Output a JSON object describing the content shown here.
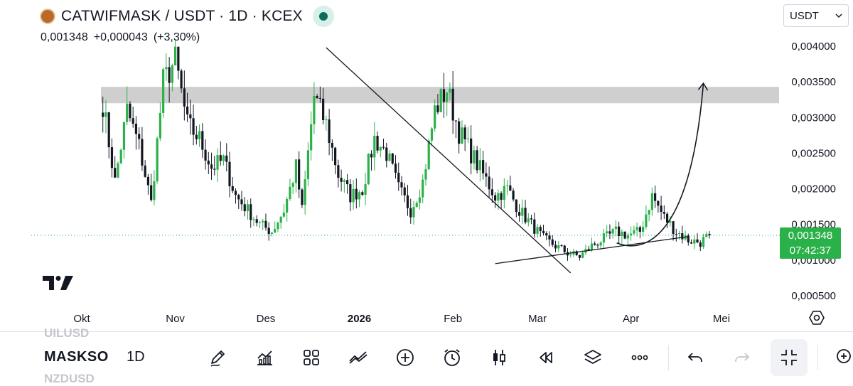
{
  "header": {
    "title": "CATWIFMASK / USDT · 1D · KCEX",
    "quote_last": "0,001348",
    "quote_change": "+0,000043",
    "quote_change_pct": "(+3,30%)",
    "currency_select": "USDT"
  },
  "price_tag": {
    "price": "0,001348",
    "countdown": "07:42:37"
  },
  "bottom_bar": {
    "ghost_prev": "UILUSD",
    "symbol": "MASKSO",
    "interval": "1D",
    "ghost_next": "NZDUSD",
    "tools": [
      {
        "name": "draw-tool-icon"
      },
      {
        "name": "indicators-icon"
      },
      {
        "name": "templates-icon"
      },
      {
        "name": "compare-icon"
      },
      {
        "name": "add-icon"
      },
      {
        "name": "alert-icon"
      },
      {
        "name": "candle-style-icon"
      },
      {
        "name": "replay-icon"
      },
      {
        "name": "layers-icon"
      },
      {
        "name": "more-icon"
      },
      {
        "name": "undo-icon"
      },
      {
        "name": "redo-icon"
      },
      {
        "name": "fullscreen-exit-icon"
      }
    ]
  },
  "colors": {
    "up": "#2bb14a",
    "down": "#131722",
    "price_line": "#26a69a",
    "zone": "#cfcfcf"
  },
  "chart_data": {
    "type": "candlestick",
    "symbol": "CATWIFMASK / USDT",
    "interval": "1D",
    "exchange": "KCEX",
    "x_ticks": [
      "Okt",
      "Nov",
      "Des",
      "2026",
      "Feb",
      "Mar",
      "Apr",
      "Mei"
    ],
    "y_ticks": [
      "0,000500",
      "0,001000",
      "0,001500",
      "0,002000",
      "0,002500",
      "0,003000",
      "0,003500",
      "0,004000"
    ],
    "ylim": [
      0.0003,
      0.0043
    ],
    "last_price": 0.001348,
    "resistance_zone": [
      0.0032,
      0.00343
    ],
    "trendlines": [
      {
        "name": "descending",
        "from": [
          "2025-12-21",
          0.00398
        ],
        "to": [
          "2026-03-12",
          0.00082
        ]
      },
      {
        "name": "ascending",
        "from": [
          "2026-02-15",
          0.00095
        ],
        "to": [
          "2026-04-20",
          0.00133
        ]
      }
    ],
    "projection": {
      "from": [
        "2026-04-01",
        0.00122
      ],
      "to": [
        "2026-04-25",
        0.00348
      ]
    },
    "ohlc_path": [
      [
        "2025-10-08",
        0.0032
      ],
      [
        "2025-10-12",
        0.0021
      ],
      [
        "2025-10-16",
        0.0031
      ],
      [
        "2025-10-20",
        0.0026
      ],
      [
        "2025-10-24",
        0.0018
      ],
      [
        "2025-10-28",
        0.0035
      ],
      [
        "2025-11-01",
        0.0038
      ],
      [
        "2025-11-05",
        0.0029
      ],
      [
        "2025-11-09",
        0.0027
      ],
      [
        "2025-11-13",
        0.0023
      ],
      [
        "2025-11-17",
        0.0024
      ],
      [
        "2025-11-21",
        0.0019
      ],
      [
        "2025-11-25",
        0.0017
      ],
      [
        "2025-11-29",
        0.0015
      ],
      [
        "2025-12-03",
        0.0014
      ],
      [
        "2025-12-07",
        0.0017
      ],
      [
        "2025-12-11",
        0.0023
      ],
      [
        "2025-12-13",
        0.0017
      ],
      [
        "2025-12-17",
        0.0033
      ],
      [
        "2025-12-21",
        0.0029
      ],
      [
        "2025-12-25",
        0.0022
      ],
      [
        "2025-12-29",
        0.0019
      ],
      [
        "2026-01-02",
        0.002
      ],
      [
        "2026-01-06",
        0.0027
      ],
      [
        "2026-01-10",
        0.0025
      ],
      [
        "2026-01-14",
        0.002
      ],
      [
        "2026-01-18",
        0.0017
      ],
      [
        "2026-01-22",
        0.0021
      ],
      [
        "2026-01-26",
        0.0031
      ],
      [
        "2026-01-30",
        0.0034
      ],
      [
        "2026-02-03",
        0.0028
      ],
      [
        "2026-02-07",
        0.0025
      ],
      [
        "2026-02-11",
        0.0022
      ],
      [
        "2026-02-15",
        0.0019
      ],
      [
        "2026-02-19",
        0.002
      ],
      [
        "2026-02-23",
        0.0017
      ],
      [
        "2026-02-27",
        0.0015
      ],
      [
        "2026-03-03",
        0.0013
      ],
      [
        "2026-03-07",
        0.0012
      ],
      [
        "2026-03-11",
        0.0011
      ],
      [
        "2026-03-15",
        0.00105
      ],
      [
        "2026-03-19",
        0.0012
      ],
      [
        "2026-03-23",
        0.0013
      ],
      [
        "2026-03-27",
        0.0014
      ],
      [
        "2026-03-31",
        0.00135
      ],
      [
        "2026-04-04",
        0.0014
      ],
      [
        "2026-04-08",
        0.0019
      ],
      [
        "2026-04-12",
        0.0016
      ],
      [
        "2026-04-16",
        0.0014
      ],
      [
        "2026-04-20",
        0.00128
      ],
      [
        "2026-04-24",
        0.00125
      ],
      [
        "2026-04-27",
        0.001348
      ]
    ]
  }
}
